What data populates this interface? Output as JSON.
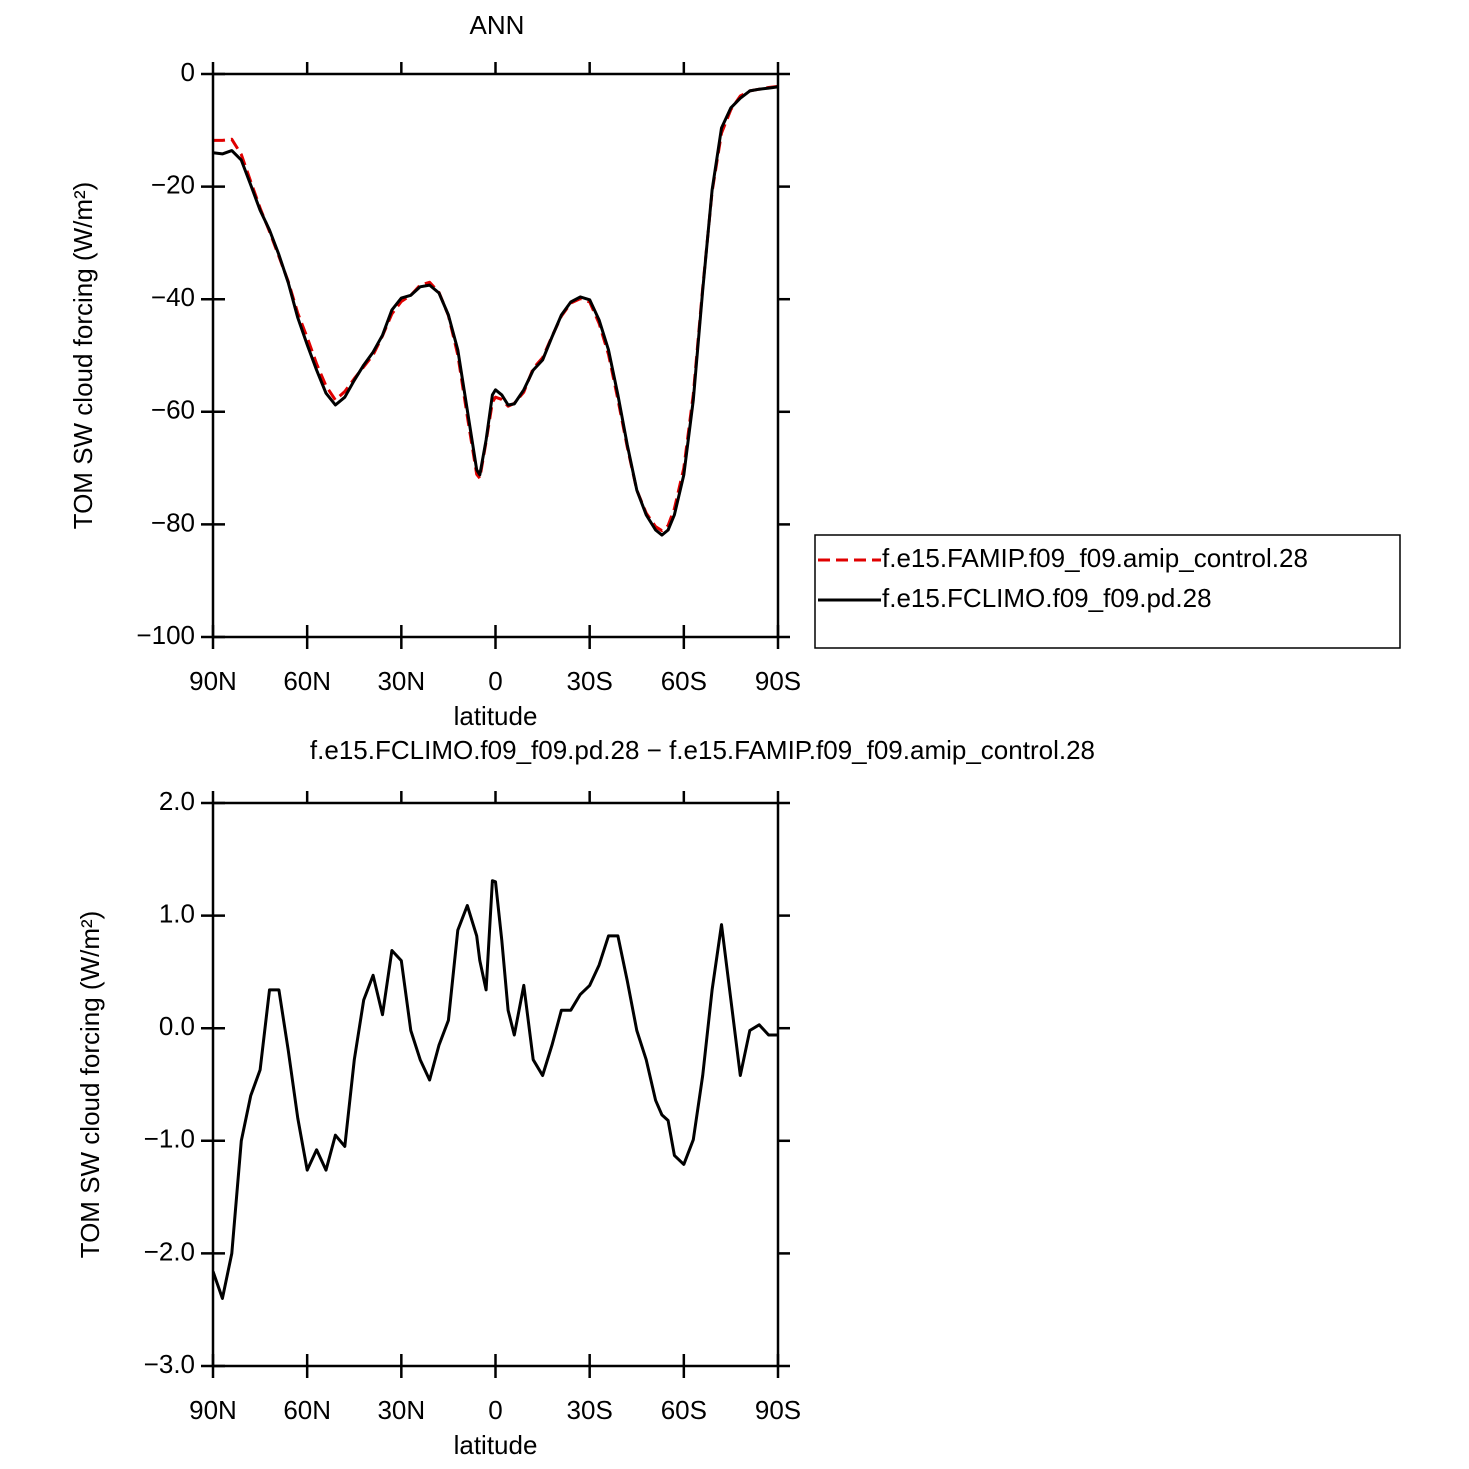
{
  "chart_data": [
    {
      "type": "line",
      "title": "ANN",
      "xlabel": "latitude",
      "ylabel": "TOM SW cloud forcing (W/m²)",
      "x": [
        90,
        87,
        84,
        81,
        78,
        75,
        72,
        69,
        66,
        63,
        60,
        57,
        54,
        51,
        48,
        45,
        42,
        39,
        36,
        33,
        30,
        27,
        24,
        21,
        18,
        15,
        12,
        9,
        6,
        5,
        3,
        1,
        0,
        -2,
        -4,
        -6,
        -9,
        -12,
        -15,
        -18,
        -21,
        -24,
        -27,
        -30,
        -33,
        -36,
        -39,
        -42,
        -45,
        -48,
        -51,
        -53,
        -55,
        -57,
        -60,
        -63,
        -66,
        -69,
        -72,
        -75,
        -78,
        -81,
        -84,
        -87,
        -90
      ],
      "series": [
        {
          "name": "f.e15.FAMIP.f09_f09.amip_control.28",
          "color": "#e00000",
          "linestyle": "dashed",
          "values": [
            -11.8,
            -11.8,
            -11.6,
            -14.3,
            -19.1,
            -23.8,
            -28.0,
            -32.4,
            -36.9,
            -42.5,
            -46.8,
            -51.5,
            -55.4,
            -57.9,
            -56.4,
            -54.1,
            -52.0,
            -49.9,
            -46.5,
            -42.6,
            -40.4,
            -39.3,
            -37.5,
            -37.0,
            -38.8,
            -42.9,
            -49.9,
            -60.8,
            -71.1,
            -71.8,
            -65.3,
            -58.3,
            -57.4,
            -57.8,
            -59.0,
            -58.5,
            -56.5,
            -52.3,
            -50.4,
            -46.6,
            -43.0,
            -40.7,
            -39.9,
            -40.5,
            -44.3,
            -49.8,
            -57.8,
            -66.3,
            -73.9,
            -78.0,
            -80.4,
            -81.1,
            -80.2,
            -77.2,
            -70.0,
            -56.9,
            -38.0,
            -20.9,
            -10.5,
            -6.3,
            -3.9,
            -3.0,
            -2.7,
            -2.4,
            -2.2
          ]
        },
        {
          "name": "f.e15.FCLIMO.f09_f09.pd.28",
          "color": "#000000",
          "linestyle": "solid",
          "values": [
            -14.0,
            -14.2,
            -13.6,
            -15.3,
            -19.7,
            -24.2,
            -27.7,
            -32.1,
            -37.1,
            -43.3,
            -48.1,
            -52.6,
            -56.7,
            -58.8,
            -57.4,
            -54.4,
            -51.7,
            -49.4,
            -46.4,
            -41.9,
            -39.8,
            -39.3,
            -37.8,
            -37.5,
            -38.9,
            -42.8,
            -49.0,
            -59.7,
            -70.3,
            -71.2,
            -65.0,
            -57.0,
            -56.1,
            -57.0,
            -58.8,
            -58.6,
            -56.1,
            -52.6,
            -50.8,
            -46.7,
            -42.8,
            -40.5,
            -39.6,
            -40.1,
            -43.7,
            -49.0,
            -57.0,
            -65.9,
            -73.9,
            -78.3,
            -81.0,
            -81.9,
            -81.0,
            -78.3,
            -71.2,
            -57.9,
            -38.4,
            -20.6,
            -9.6,
            -6.0,
            -4.3,
            -3.0,
            -2.7,
            -2.5,
            -2.3
          ]
        }
      ],
      "xlim": [
        90,
        -90
      ],
      "xticks": [
        {
          "value": 90,
          "label": "90N"
        },
        {
          "value": 60,
          "label": "60N"
        },
        {
          "value": 30,
          "label": "30N"
        },
        0,
        {
          "value": -30,
          "label": "30S"
        },
        {
          "value": -60,
          "label": "60S"
        },
        {
          "value": -90,
          "label": "90S"
        }
      ],
      "ylim": [
        -100,
        0
      ],
      "yticks": [
        0,
        {
          "value": -20,
          "label": "−20"
        },
        {
          "value": -40,
          "label": "−40"
        },
        {
          "value": -60,
          "label": "−60"
        },
        {
          "value": -80,
          "label": "−80"
        },
        {
          "value": -100,
          "label": "−100"
        }
      ],
      "legend": "right"
    },
    {
      "type": "line",
      "title": "f.e15.FCLIMO.f09_f09.pd.28 − f.e15.FAMIP.f09_f09.amip_control.28",
      "xlabel": "latitude",
      "ylabel": "TOM SW cloud forcing (W/m²)",
      "x": [
        90,
        87,
        84,
        81,
        78,
        75,
        72,
        69,
        66,
        63,
        60,
        57,
        54,
        51,
        48,
        45,
        42,
        39,
        36,
        33,
        30,
        27,
        24,
        21,
        18,
        15,
        12,
        9,
        6,
        5,
        3,
        1,
        0,
        -2,
        -4,
        -6,
        -9,
        -12,
        -15,
        -18,
        -21,
        -24,
        -27,
        -30,
        -33,
        -36,
        -39,
        -42,
        -45,
        -48,
        -51,
        -53,
        -55,
        -57,
        -60,
        -63,
        -66,
        -69,
        -72,
        -75,
        -78,
        -81,
        -84,
        -87,
        -90
      ],
      "series": [
        {
          "color": "#000000",
          "linestyle": "solid",
          "values": [
            -2.16,
            -2.4,
            -2.0,
            -1.0,
            -0.6,
            -0.37,
            0.34,
            0.34,
            -0.2,
            -0.8,
            -1.26,
            -1.08,
            -1.26,
            -0.95,
            -1.05,
            -0.28,
            0.25,
            0.47,
            0.12,
            0.69,
            0.6,
            -0.02,
            -0.28,
            -0.46,
            -0.15,
            0.07,
            0.87,
            1.09,
            0.82,
            0.6,
            0.34,
            1.31,
            1.3,
            0.78,
            0.16,
            -0.06,
            0.38,
            -0.28,
            -0.42,
            -0.15,
            0.16,
            0.16,
            0.3,
            0.38,
            0.56,
            0.82,
            0.82,
            0.42,
            -0.02,
            -0.28,
            -0.64,
            -0.77,
            -0.82,
            -1.13,
            -1.21,
            -0.99,
            -0.42,
            0.34,
            0.92,
            0.25,
            -0.42,
            -0.02,
            0.03,
            -0.06,
            -0.06
          ]
        }
      ],
      "xlim": [
        90,
        -90
      ],
      "xticks": [
        {
          "value": 90,
          "label": "90N"
        },
        {
          "value": 60,
          "label": "60N"
        },
        {
          "value": 30,
          "label": "30N"
        },
        0,
        {
          "value": -30,
          "label": "30S"
        },
        {
          "value": -60,
          "label": "60S"
        },
        {
          "value": -90,
          "label": "90S"
        }
      ],
      "ylim": [
        -3,
        2
      ],
      "yticks": [
        {
          "value": 2,
          "label": "2.0"
        },
        {
          "value": 1,
          "label": "1.0"
        },
        {
          "value": 0,
          "label": "0.0"
        },
        {
          "value": -1,
          "label": "−1.0"
        },
        {
          "value": -2,
          "label": "−2.0"
        },
        {
          "value": -3,
          "label": "−3.0"
        }
      ]
    }
  ]
}
